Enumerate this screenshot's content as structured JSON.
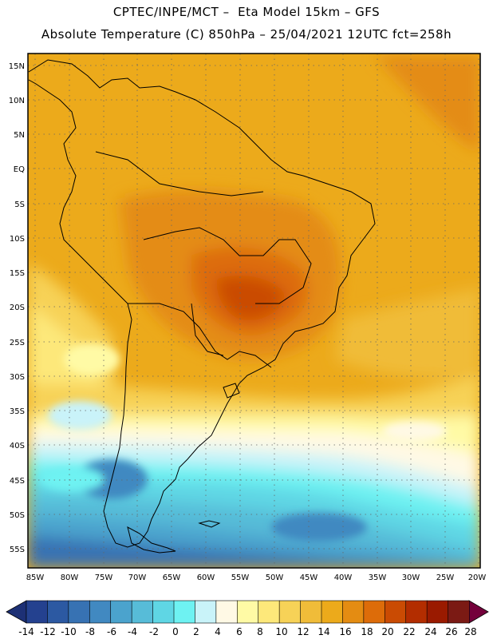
{
  "header": {
    "line1": "CPTEC/INPE/MCT –  Eta Model 15km – GFS",
    "line2": "Absolute Temperature (C) 850hPa – 25/04/2021 12UTC fct=258h"
  },
  "map": {
    "lat_labels": [
      "15N",
      "10N",
      "5N",
      "EQ",
      "5S",
      "10S",
      "15S",
      "20S",
      "25S",
      "30S",
      "35S",
      "40S",
      "45S",
      "50S",
      "55S"
    ],
    "lon_labels": [
      "85W",
      "80W",
      "75W",
      "70W",
      "65W",
      "60W",
      "55W",
      "50W",
      "45W",
      "40W",
      "35W",
      "30W",
      "25W",
      "20W"
    ]
  },
  "colorbar": {
    "labels": [
      "-14",
      "-12",
      "-10",
      "-8",
      "-6",
      "-4",
      "-2",
      "0",
      "2",
      "4",
      "6",
      "8",
      "10",
      "12",
      "14",
      "16",
      "18",
      "20",
      "22",
      "24",
      "26",
      "28"
    ],
    "colors": [
      "#24418f",
      "#2c59a2",
      "#3772b3",
      "#4189c1",
      "#4ba3cd",
      "#57bcd8",
      "#5fd6e4",
      "#6ef2f2",
      "#c9f3f9",
      "#fff9e5",
      "#fffaa5",
      "#fde87a",
      "#f7d257",
      "#f0bc39",
      "#ecaa1b",
      "#e48c12",
      "#dd6c09",
      "#ca4b03",
      "#b32d00",
      "#9a1a00",
      "#7b1a14"
    ],
    "under_color": "#1d3075",
    "over_color": "#74003b"
  }
}
